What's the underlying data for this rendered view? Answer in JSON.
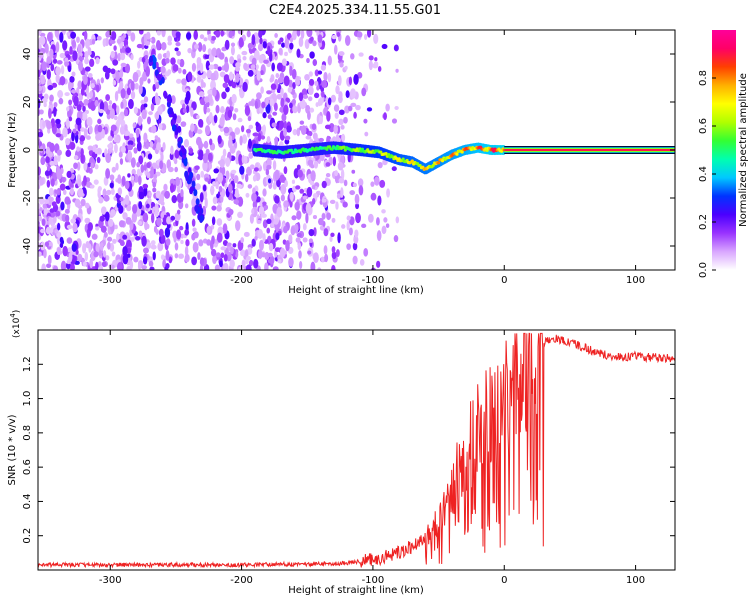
{
  "title": "C2E4.2025.334.11.55.G01",
  "chart_data": [
    {
      "type": "heatmap",
      "title": "C2E4.2025.334.11.55.G01",
      "xlabel": "Height of straight line (km)",
      "ylabel": "Frequency (Hz)",
      "xlim": [
        -355,
        130
      ],
      "ylim": [
        -50,
        50
      ],
      "xticks": [
        -300,
        -200,
        -100,
        0,
        100
      ],
      "yticks": [
        -40,
        -20,
        0,
        20,
        40
      ],
      "colorbar": {
        "label": "Normalized spectral amplitude",
        "range": [
          0,
          1
        ],
        "ticks": [
          "0.0",
          "0.2",
          "0.4",
          "0.6",
          "0.8"
        ],
        "colors": [
          "#ffffff",
          "#d9a6ff",
          "#9933ff",
          "#4b00ff",
          "#0033ff",
          "#00c8ff",
          "#00ffb0",
          "#33ff33",
          "#b0ff00",
          "#ffff00",
          "#ffb000",
          "#ff4000",
          "#ff0066",
          "#ff0099"
        ]
      },
      "features": {
        "noise_region_x": [
          -355,
          -100
        ],
        "slanted_trace": [
          [
            -270,
            40
          ],
          [
            -255,
            20
          ],
          [
            -245,
            0
          ],
          [
            -238,
            -15
          ],
          [
            -230,
            -30
          ]
        ],
        "signal_track": [
          [
            -190,
            0
          ],
          [
            -170,
            -1
          ],
          [
            -150,
            0
          ],
          [
            -130,
            1
          ],
          [
            -110,
            0
          ],
          [
            -95,
            -1
          ],
          [
            -80,
            -4
          ],
          [
            -70,
            -5
          ],
          [
            -60,
            -8
          ],
          [
            -50,
            -5
          ],
          [
            -40,
            -2
          ],
          [
            -30,
            0
          ],
          [
            -20,
            1
          ],
          [
            -10,
            0
          ],
          [
            0,
            0
          ]
        ],
        "steady_line": {
          "x_from": 0,
          "x_to": 130,
          "y": 0
        }
      }
    },
    {
      "type": "line",
      "xlabel": "Height of straight line (km)",
      "ylabel": "SNR (10 * v/v)",
      "scale_label": "(x10^4)",
      "scale_base": "x10",
      "scale_exp": "4",
      "xlim": [
        -355,
        130
      ],
      "ylim": [
        0,
        1.4
      ],
      "xticks": [
        -300,
        -200,
        -100,
        0,
        100
      ],
      "yticks": [
        "0.2",
        "0.4",
        "0.6",
        "0.8",
        "1.0",
        "1.2"
      ],
      "series": [
        {
          "color": "#ee2222",
          "x": [
            -355,
            -300,
            -250,
            -200,
            -150,
            -120,
            -100,
            -80,
            -60,
            -50,
            -40,
            -35,
            -30,
            -25,
            -20,
            -15,
            -10,
            -5,
            0,
            5,
            10,
            20,
            30,
            40,
            50,
            60,
            70,
            80,
            90,
            100,
            110,
            120,
            130
          ],
          "y": [
            0.03,
            0.03,
            0.03,
            0.03,
            0.035,
            0.04,
            0.06,
            0.1,
            0.18,
            0.28,
            0.45,
            0.6,
            0.7,
            0.75,
            0.8,
            0.85,
            0.9,
            0.95,
            1.0,
            1.1,
            1.2,
            1.28,
            1.33,
            1.35,
            1.33,
            1.3,
            1.27,
            1.25,
            1.24,
            1.25,
            1.24,
            1.24,
            1.23
          ]
        }
      ]
    }
  ]
}
